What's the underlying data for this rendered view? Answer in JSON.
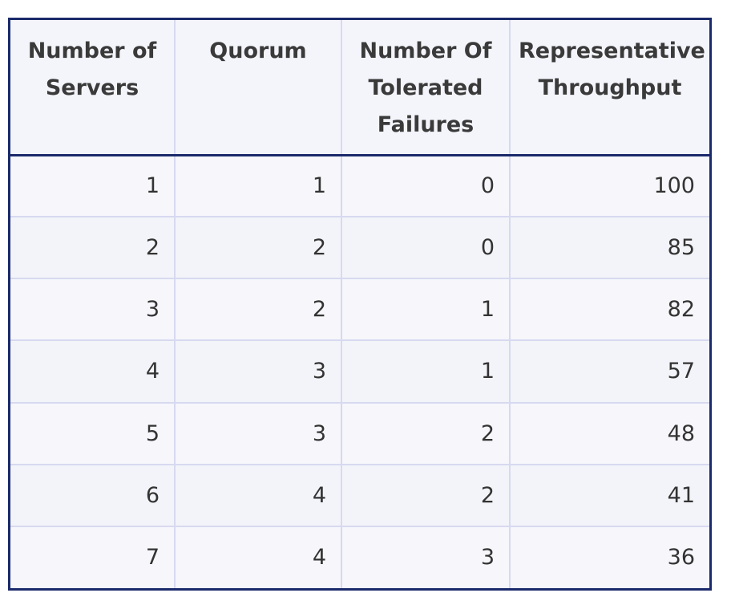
{
  "table": {
    "headers": [
      "Number of Servers",
      "Quorum",
      "Number Of Tolerated Failures",
      "Representative Throughput"
    ],
    "rows": [
      [
        "1",
        "1",
        "0",
        "100"
      ],
      [
        "2",
        "2",
        "0",
        "85"
      ],
      [
        "3",
        "2",
        "1",
        "82"
      ],
      [
        "4",
        "3",
        "1",
        "57"
      ],
      [
        "5",
        "3",
        "2",
        "48"
      ],
      [
        "6",
        "4",
        "2",
        "41"
      ],
      [
        "7",
        "4",
        "3",
        "36"
      ]
    ]
  },
  "colors": {
    "border": "#1b2a6b",
    "grid": "#d7d9f0",
    "header_bg": "#f4f5fb"
  }
}
